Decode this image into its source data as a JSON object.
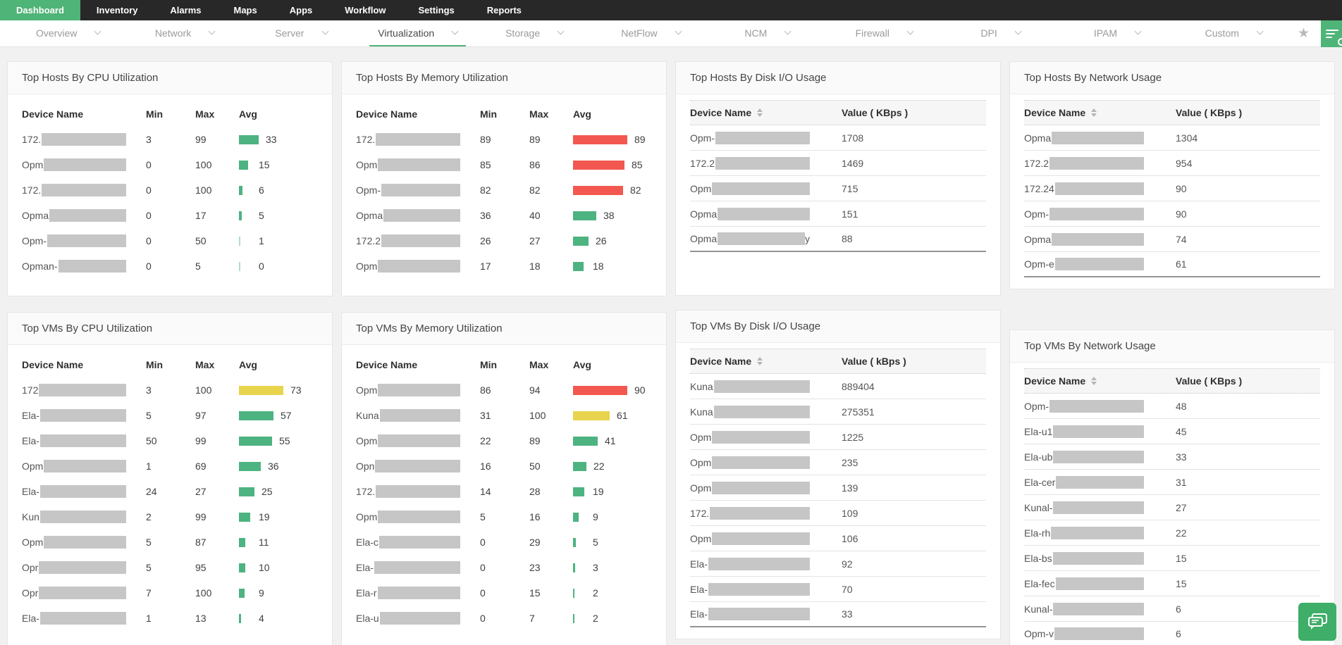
{
  "topnav": {
    "items": [
      {
        "label": "Dashboard",
        "active": true
      },
      {
        "label": "Inventory",
        "active": false
      },
      {
        "label": "Alarms",
        "active": false
      },
      {
        "label": "Maps",
        "active": false
      },
      {
        "label": "Apps",
        "active": false
      },
      {
        "label": "Workflow",
        "active": false
      },
      {
        "label": "Settings",
        "active": false
      },
      {
        "label": "Reports",
        "active": false
      }
    ]
  },
  "subnav": {
    "items": [
      {
        "label": "Overview",
        "active": false
      },
      {
        "label": "Network",
        "active": false
      },
      {
        "label": "Server",
        "active": false
      },
      {
        "label": "Virtualization",
        "active": true
      },
      {
        "label": "Storage",
        "active": false
      },
      {
        "label": "NetFlow",
        "active": false
      },
      {
        "label": "NCM",
        "active": false
      },
      {
        "label": "Firewall",
        "active": false
      },
      {
        "label": "DPI",
        "active": false
      },
      {
        "label": "IPAM",
        "active": false
      },
      {
        "label": "Custom",
        "active": false
      }
    ],
    "star_icon": "★"
  },
  "colors": {
    "nav_green": "#4fb478",
    "bar_green": "#4db380",
    "bar_red": "#f2584f",
    "bar_yellow": "#e8d44d",
    "redaction_gray": "#c6c6c6"
  },
  "panels": {
    "hosts_cpu": {
      "title": "Top Hosts By CPU Utilization",
      "type": "bar",
      "columns": [
        "Device Name",
        "Min",
        "Max",
        "Avg"
      ],
      "rows": [
        {
          "device_prefix": "172.",
          "min": 3,
          "max": 99,
          "avg": 33,
          "avg_color": "green"
        },
        {
          "device_prefix": "Opm",
          "min": 0,
          "max": 100,
          "avg": 15,
          "avg_color": "green"
        },
        {
          "device_prefix": "172.",
          "min": 0,
          "max": 100,
          "avg": 6,
          "avg_color": "green"
        },
        {
          "device_prefix": "Opma",
          "min": 0,
          "max": 17,
          "avg": 5,
          "avg_color": "green"
        },
        {
          "device_prefix": "Opm-",
          "min": 0,
          "max": 50,
          "avg": 1,
          "avg_color": "green"
        },
        {
          "device_prefix": "Opman-",
          "min": 0,
          "max": 5,
          "avg": 0,
          "avg_color": "green"
        }
      ]
    },
    "hosts_memory": {
      "title": "Top Hosts By Memory Utilization",
      "type": "bar",
      "columns": [
        "Device Name",
        "Min",
        "Max",
        "Avg"
      ],
      "rows": [
        {
          "device_prefix": "172.",
          "min": 89,
          "max": 89,
          "avg": 89,
          "avg_color": "red"
        },
        {
          "device_prefix": "Opm",
          "min": 85,
          "max": 86,
          "avg": 85,
          "avg_color": "red"
        },
        {
          "device_prefix": "Opm-",
          "min": 82,
          "max": 82,
          "avg": 82,
          "avg_color": "red"
        },
        {
          "device_prefix": "Opma",
          "min": 36,
          "max": 40,
          "avg": 38,
          "avg_color": "green"
        },
        {
          "device_prefix": "172.2",
          "min": 26,
          "max": 27,
          "avg": 26,
          "avg_color": "green"
        },
        {
          "device_prefix": "Opm",
          "min": 17,
          "max": 18,
          "avg": 18,
          "avg_color": "green"
        }
      ]
    },
    "hosts_disk": {
      "title": "Top Hosts By Disk I/O Usage",
      "type": "value",
      "columns": [
        "Device Name",
        "Value ( KBps )"
      ],
      "rows": [
        {
          "device_prefix": "Opm-",
          "device_suffix": "",
          "value": "1708"
        },
        {
          "device_prefix": "172.2",
          "device_suffix": "",
          "value": "1469"
        },
        {
          "device_prefix": "Opm",
          "device_suffix": "",
          "value": "715"
        },
        {
          "device_prefix": "Opma",
          "device_suffix": "",
          "value": "151"
        },
        {
          "device_prefix": "Opma",
          "device_suffix": "y",
          "value": "88"
        }
      ]
    },
    "hosts_network": {
      "title": "Top Hosts By Network Usage",
      "type": "value",
      "columns": [
        "Device Name",
        "Value ( KBps )"
      ],
      "rows": [
        {
          "device_prefix": "Opma",
          "device_suffix": "",
          "value": "1304"
        },
        {
          "device_prefix": "172.2",
          "device_suffix": "",
          "value": "954"
        },
        {
          "device_prefix": "172.24",
          "device_suffix": "",
          "value": "90"
        },
        {
          "device_prefix": "Opm-",
          "device_suffix": "",
          "value": "90"
        },
        {
          "device_prefix": "Opma",
          "device_suffix": "",
          "value": "74"
        },
        {
          "device_prefix": "Opm-e",
          "device_suffix": "",
          "value": "61"
        }
      ]
    },
    "vms_cpu": {
      "title": "Top VMs By CPU Utilization",
      "type": "bar",
      "columns": [
        "Device Name",
        "Min",
        "Max",
        "Avg"
      ],
      "rows": [
        {
          "device_prefix": "172",
          "min": 3,
          "max": 100,
          "avg": 73,
          "avg_color": "yellow"
        },
        {
          "device_prefix": "Ela-",
          "min": 5,
          "max": 97,
          "avg": 57,
          "avg_color": "green"
        },
        {
          "device_prefix": "Ela-",
          "min": 50,
          "max": 99,
          "avg": 55,
          "avg_color": "green"
        },
        {
          "device_prefix": "Opm",
          "min": 1,
          "max": 69,
          "avg": 36,
          "avg_color": "green"
        },
        {
          "device_prefix": "Ela-",
          "min": 24,
          "max": 27,
          "avg": 25,
          "avg_color": "green"
        },
        {
          "device_prefix": "Kun",
          "min": 2,
          "max": 99,
          "avg": 19,
          "avg_color": "green"
        },
        {
          "device_prefix": "Opm",
          "min": 5,
          "max": 87,
          "avg": 11,
          "avg_color": "green"
        },
        {
          "device_prefix": "Opr",
          "min": 5,
          "max": 95,
          "avg": 10,
          "avg_color": "green"
        },
        {
          "device_prefix": "Opr",
          "min": 7,
          "max": 100,
          "avg": 9,
          "avg_color": "green"
        },
        {
          "device_prefix": "Ela-",
          "min": 1,
          "max": 13,
          "avg": 4,
          "avg_color": "green"
        }
      ]
    },
    "vms_memory": {
      "title": "Top VMs By Memory Utilization",
      "type": "bar",
      "columns": [
        "Device Name",
        "Min",
        "Max",
        "Avg"
      ],
      "rows": [
        {
          "device_prefix": "Opm",
          "min": 86,
          "max": 94,
          "avg": 90,
          "avg_color": "red"
        },
        {
          "device_prefix": "Kuna",
          "min": 31,
          "max": 100,
          "avg": 61,
          "avg_color": "yellow"
        },
        {
          "device_prefix": "Opm",
          "min": 22,
          "max": 89,
          "avg": 41,
          "avg_color": "green"
        },
        {
          "device_prefix": "Opn",
          "min": 16,
          "max": 50,
          "avg": 22,
          "avg_color": "green"
        },
        {
          "device_prefix": "172.",
          "min": 14,
          "max": 28,
          "avg": 19,
          "avg_color": "green"
        },
        {
          "device_prefix": "Opm",
          "min": 5,
          "max": 16,
          "avg": 9,
          "avg_color": "green"
        },
        {
          "device_prefix": "Ela-c",
          "min": 0,
          "max": 29,
          "avg": 5,
          "avg_color": "green"
        },
        {
          "device_prefix": "Ela-",
          "min": 0,
          "max": 23,
          "avg": 3,
          "avg_color": "green"
        },
        {
          "device_prefix": "Ela-r",
          "min": 0,
          "max": 15,
          "avg": 2,
          "avg_color": "green"
        },
        {
          "device_prefix": "Ela-u",
          "min": 0,
          "max": 7,
          "avg": 2,
          "avg_color": "green"
        }
      ]
    },
    "vms_disk": {
      "title": "Top VMs By Disk I/O Usage",
      "type": "value",
      "columns": [
        "Device Name",
        "Value ( kBps )"
      ],
      "rows": [
        {
          "device_prefix": "Kuna",
          "device_suffix": "",
          "value": "889404"
        },
        {
          "device_prefix": "Kuna",
          "device_suffix": "",
          "value": "275351"
        },
        {
          "device_prefix": "Opm",
          "device_suffix": "",
          "value": "1225"
        },
        {
          "device_prefix": "Opm",
          "device_suffix": "",
          "value": "235"
        },
        {
          "device_prefix": "Opm",
          "device_suffix": "",
          "value": "139"
        },
        {
          "device_prefix": "172.",
          "device_suffix": "",
          "value": "109"
        },
        {
          "device_prefix": "Opm",
          "device_suffix": "",
          "value": "106"
        },
        {
          "device_prefix": "Ela-",
          "device_suffix": "",
          "value": "92"
        },
        {
          "device_prefix": "Ela-",
          "device_suffix": "",
          "value": "70"
        },
        {
          "device_prefix": "Ela-",
          "device_suffix": "",
          "value": "33"
        }
      ]
    },
    "vms_network": {
      "title": "Top VMs By Network Usage",
      "type": "value",
      "columns": [
        "Device Name",
        "Value ( KBps )"
      ],
      "rows": [
        {
          "device_prefix": "Opm-",
          "device_suffix": "",
          "value": "48"
        },
        {
          "device_prefix": "Ela-u1",
          "device_suffix": "",
          "value": "45"
        },
        {
          "device_prefix": "Ela-ub",
          "device_suffix": "",
          "value": "33"
        },
        {
          "device_prefix": "Ela-cer",
          "device_suffix": "",
          "value": "31"
        },
        {
          "device_prefix": "Kunal-",
          "device_suffix": "",
          "value": "27"
        },
        {
          "device_prefix": "Ela-rh",
          "device_suffix": "",
          "value": "22"
        },
        {
          "device_prefix": "Ela-bs",
          "device_suffix": "",
          "value": "15"
        },
        {
          "device_prefix": "Ela-fec",
          "device_suffix": "",
          "value": "15"
        },
        {
          "device_prefix": "Kunal-",
          "device_suffix": "",
          "value": "6"
        },
        {
          "device_prefix": "Opm-v",
          "device_suffix": "",
          "value": "6"
        }
      ]
    }
  }
}
